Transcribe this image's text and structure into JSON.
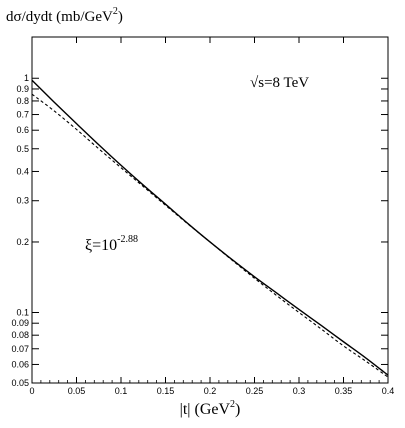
{
  "chart_data": {
    "type": "line",
    "ylabel": "dσ/dydt  (mb/GeV",
    "ylabel_sup": "2",
    "ylabel_close": ")",
    "xlabel": "|t|  (GeV",
    "xlabel_sup": "2",
    "xlabel_close": ")",
    "energy_label": "√s=8 TeV",
    "xi_label": "ξ=10",
    "xi_exponent": "-2.88",
    "xlim": [
      0,
      0.4
    ],
    "ylim": [
      0.05,
      1.5
    ],
    "y_scale": "log",
    "grid": false,
    "x_ticks": [
      {
        "value": 0,
        "label": "0"
      },
      {
        "value": 0.05,
        "label": "0.05"
      },
      {
        "value": 0.1,
        "label": "0.1"
      },
      {
        "value": 0.15,
        "label": "0.15"
      },
      {
        "value": 0.2,
        "label": "0.2"
      },
      {
        "value": 0.25,
        "label": "0.25"
      },
      {
        "value": 0.3,
        "label": "0.3"
      },
      {
        "value": 0.35,
        "label": "0.35"
      },
      {
        "value": 0.4,
        "label": "0.4"
      }
    ],
    "y_ticks": [
      {
        "value": 1,
        "label": "1"
      },
      {
        "value": 0.9,
        "label": "0.9"
      },
      {
        "value": 0.8,
        "label": "0.8"
      },
      {
        "value": 0.7,
        "label": "0.7"
      },
      {
        "value": 0.6,
        "label": "0.6"
      },
      {
        "value": 0.5,
        "label": "0.5"
      },
      {
        "value": 0.4,
        "label": "0.4"
      },
      {
        "value": 0.3,
        "label": "0.3"
      },
      {
        "value": 0.2,
        "label": "0.2"
      },
      {
        "value": 0.1,
        "label": "0.1"
      },
      {
        "value": 0.09,
        "label": "0.09"
      },
      {
        "value": 0.08,
        "label": "0.08"
      },
      {
        "value": 0.07,
        "label": "0.07"
      },
      {
        "value": 0.06,
        "label": "0.06"
      },
      {
        "value": 0.05,
        "label": "0.05"
      }
    ],
    "series": [
      {
        "style": "solid",
        "x": [
          0,
          0.025,
          0.05,
          0.075,
          0.1,
          0.125,
          0.15,
          0.175,
          0.2,
          0.225,
          0.25,
          0.275,
          0.3,
          0.325,
          0.35,
          0.375,
          0.4
        ],
        "y": [
          0.98,
          0.79,
          0.64,
          0.52,
          0.425,
          0.35,
          0.29,
          0.24,
          0.2,
          0.168,
          0.142,
          0.121,
          0.103,
          0.088,
          0.075,
          0.064,
          0.054
        ]
      },
      {
        "style": "dashed",
        "x": [
          0,
          0.025,
          0.05,
          0.075,
          0.1,
          0.125,
          0.15,
          0.175,
          0.2,
          0.225,
          0.25,
          0.275,
          0.3,
          0.325,
          0.35,
          0.375,
          0.4
        ],
        "y": [
          0.855,
          0.725,
          0.605,
          0.5,
          0.415,
          0.345,
          0.287,
          0.239,
          0.2,
          0.167,
          0.14,
          0.118,
          0.1,
          0.085,
          0.072,
          0.062,
          0.053
        ]
      }
    ]
  }
}
